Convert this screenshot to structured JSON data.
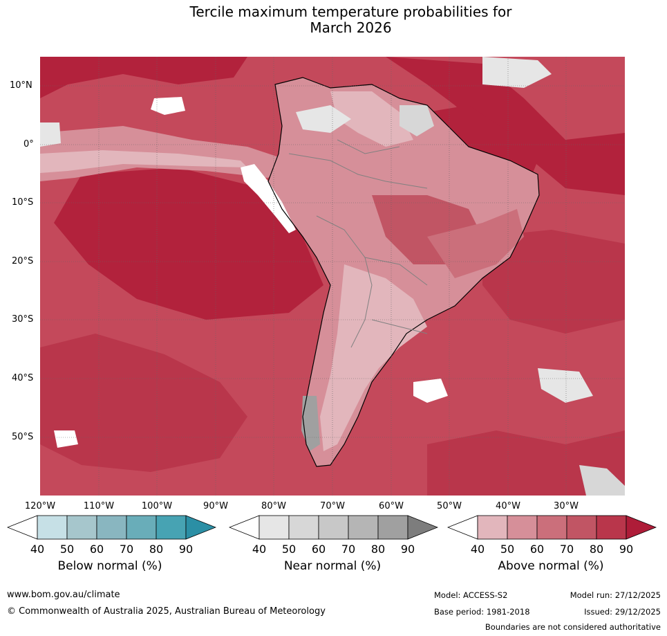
{
  "title_line1": "Tercile maximum temperature probabilities for",
  "title_line2": "March 2026",
  "map": {
    "lat_labels": [
      "10°N",
      "0°",
      "10°S",
      "20°S",
      "30°S",
      "40°S",
      "50°S"
    ],
    "lon_labels": [
      "120°W",
      "110°W",
      "100°W",
      "90°W",
      "80°W",
      "70°W",
      "60°W",
      "50°W",
      "40°W",
      "30°W"
    ],
    "lon_range": [
      -120,
      -20
    ],
    "lat_range": [
      -60,
      15
    ]
  },
  "colorbars": [
    {
      "title": "Below normal (%)",
      "ticks": [
        "40",
        "50",
        "60",
        "70",
        "80",
        "90"
      ],
      "colors": [
        "#ffffff",
        "#c6e0e6",
        "#a6c6cc",
        "#89b6c0",
        "#69adb9",
        "#47a3b3",
        "#2b8fa5"
      ]
    },
    {
      "title": "Near normal (%)",
      "ticks": [
        "40",
        "50",
        "60",
        "70",
        "80",
        "90"
      ],
      "colors": [
        "#ffffff",
        "#e6e6e6",
        "#d7d7d7",
        "#c8c8c8",
        "#b5b5b5",
        "#a0a0a0",
        "#7d7d7d"
      ]
    },
    {
      "title": "Above normal (%)",
      "ticks": [
        "40",
        "50",
        "60",
        "70",
        "80",
        "90"
      ],
      "colors": [
        "#ffffff",
        "#e2b6bc",
        "#d68f99",
        "#cb6f7b",
        "#c15564",
        "#b9364b",
        "#ae1c38"
      ]
    }
  ],
  "footer": {
    "url": "www.bom.gov.au/climate",
    "copyright": "© Commonwealth of Australia 2025, Australian Bureau of Meteorology",
    "model": "Model: ACCESS-S2",
    "base_period": "Base period: 1981-2018",
    "model_run": "Model run: 27/12/2025",
    "issued": "Issued: 29/12/2025",
    "disclaimer": "Boundaries are not considered authoritative"
  }
}
